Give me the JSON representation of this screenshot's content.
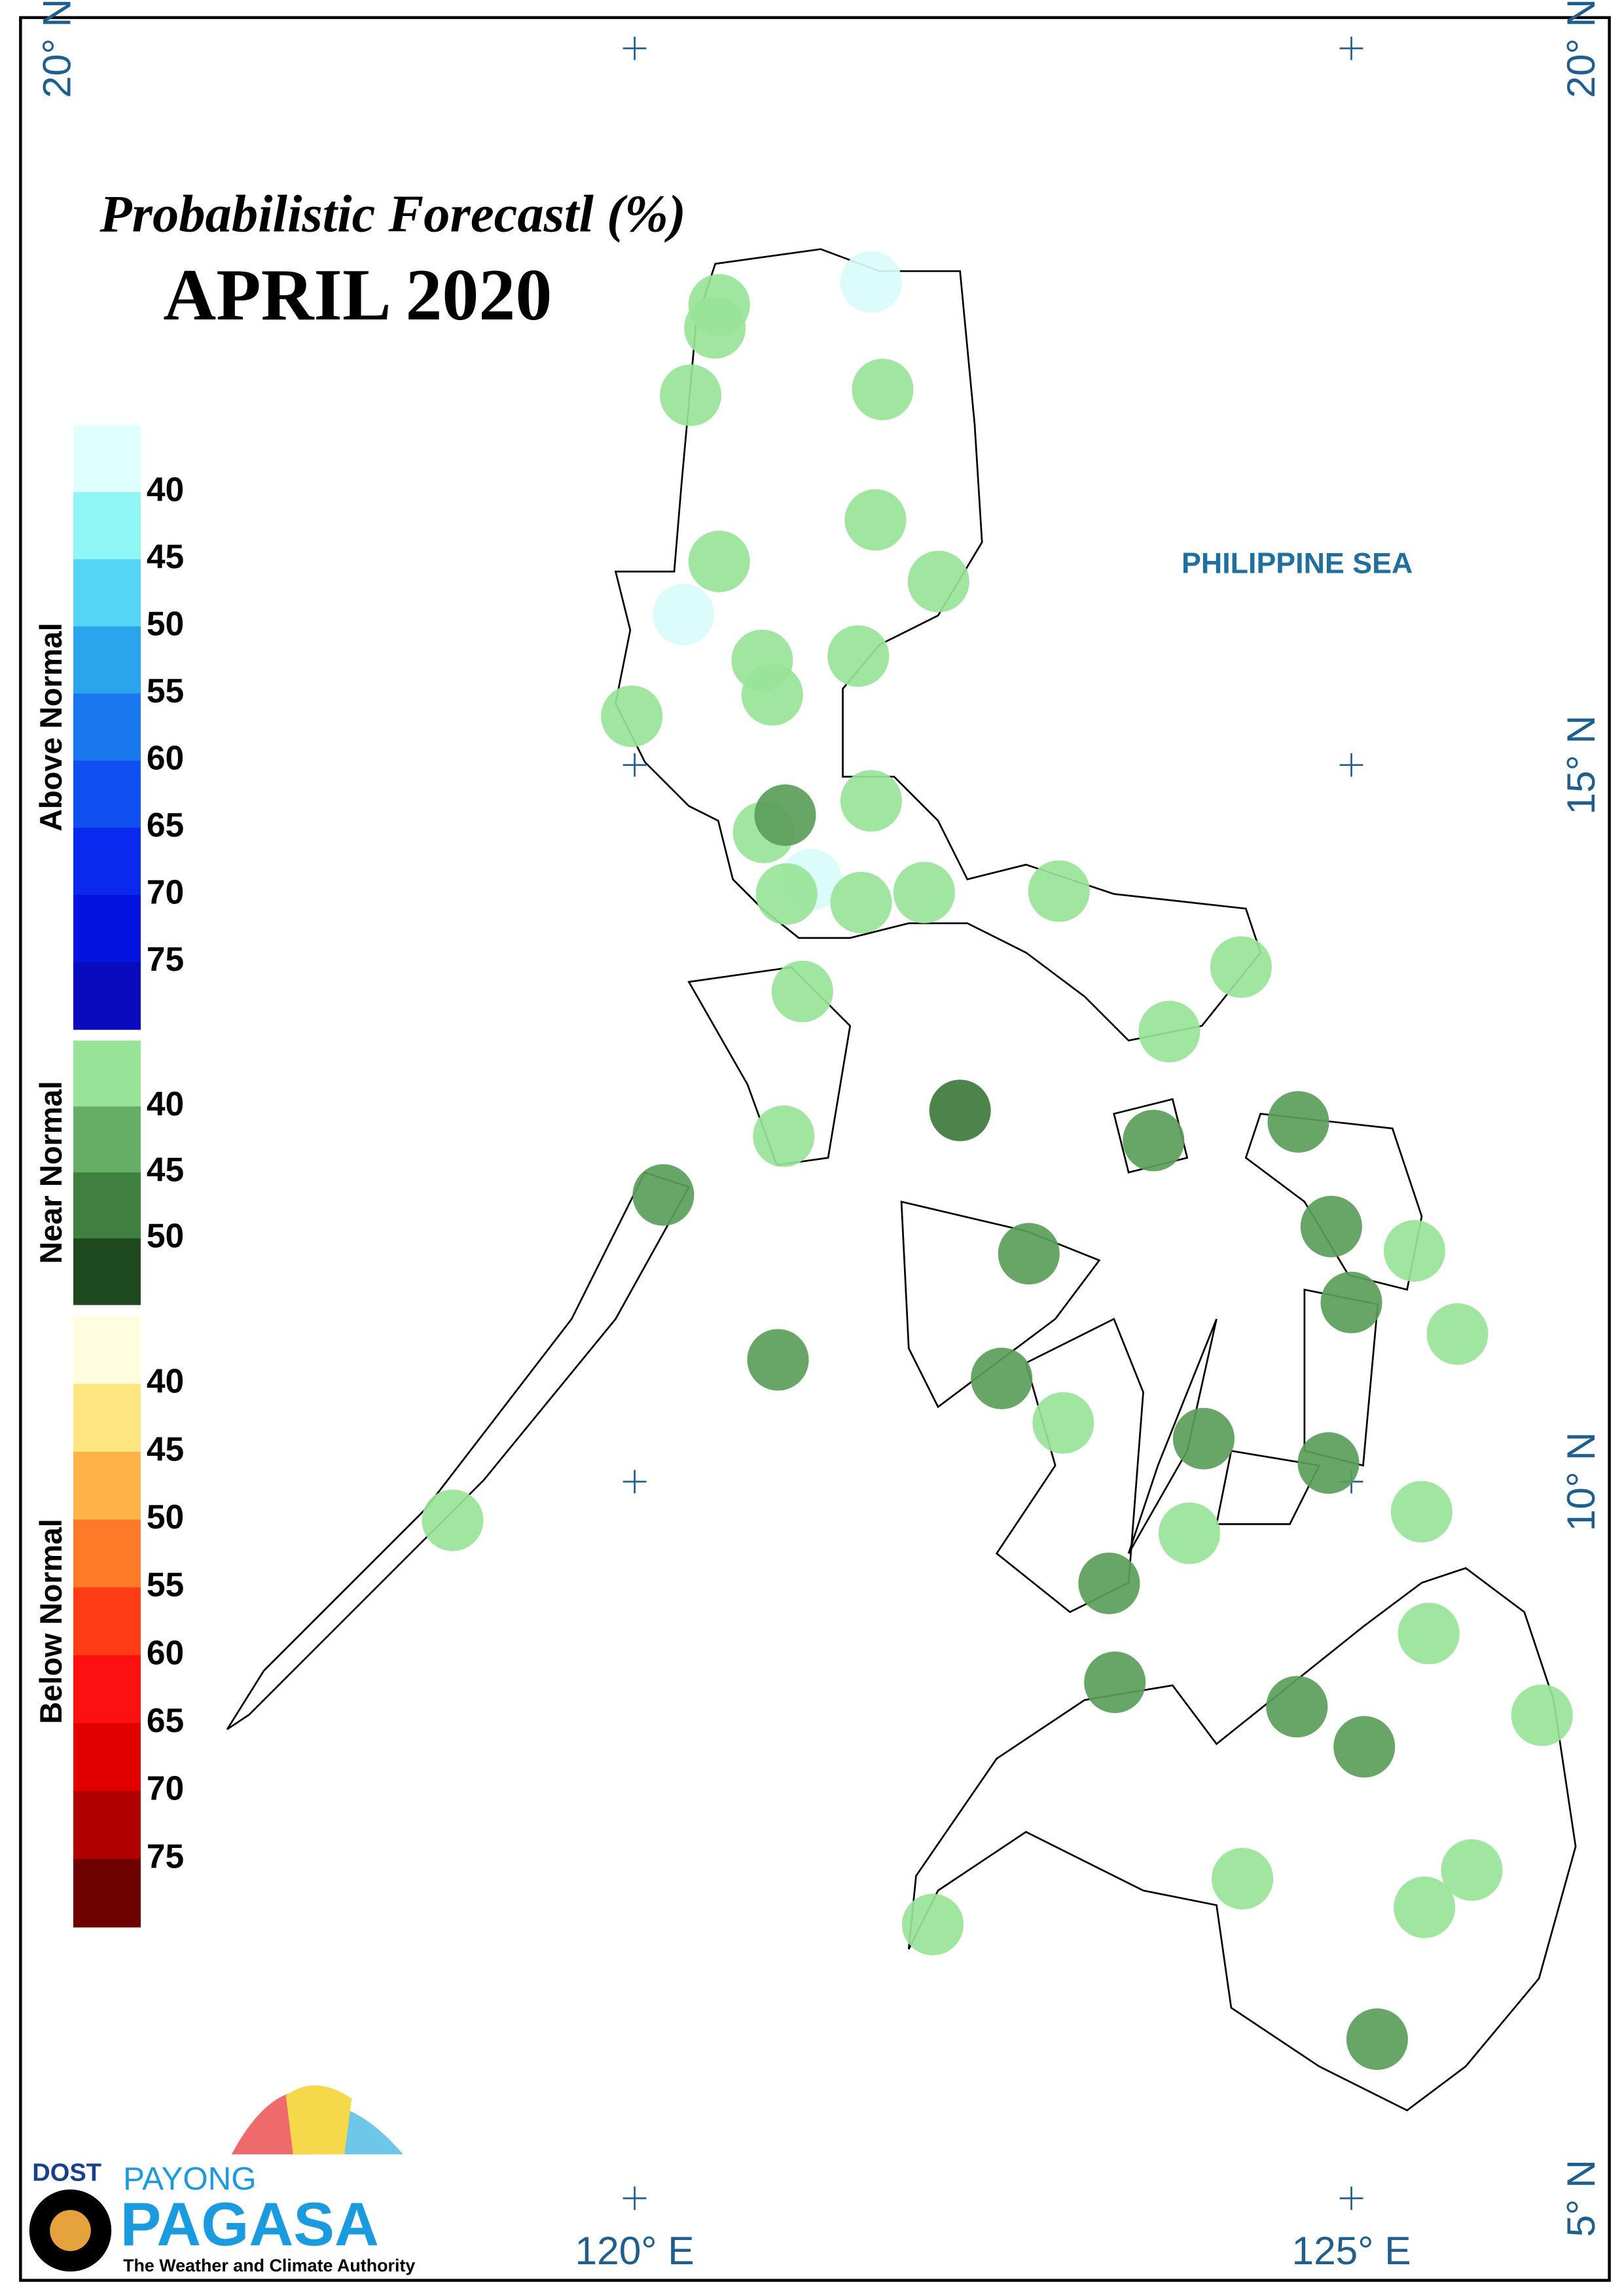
{
  "title": "Probabilistic Forecastl (%)",
  "subtitle": "APRIL 2020",
  "sea_label": "PHILIPPINE SEA",
  "legend": [
    {
      "name": "Above Normal",
      "colors": [
        "#e0ffff",
        "#8ff5f5",
        "#55d5f5",
        "#2ba4ee",
        "#1a78ee",
        "#1050f0",
        "#0a28ee",
        "#0414e0",
        "#0a0abf"
      ],
      "labels": [
        40,
        45,
        50,
        55,
        60,
        65,
        70,
        75
      ]
    },
    {
      "name": "Near Normal",
      "colors": [
        "#98e498",
        "#66ae66",
        "#3f7f3f",
        "#1f4a1f"
      ],
      "labels": [
        40,
        45,
        50
      ]
    },
    {
      "name": "Below Normal",
      "colors": [
        "#fffde0",
        "#ffe680",
        "#ffb44a",
        "#ff7a28",
        "#ff3c14",
        "#ff1010",
        "#e00000",
        "#b00000",
        "#6e0000"
      ],
      "labels": [
        40,
        45,
        50,
        55,
        60,
        65,
        70,
        75
      ]
    }
  ],
  "grid": {
    "lon": [
      {
        "value": 120,
        "label": "120° E"
      },
      {
        "value": 125,
        "label": "125° E"
      }
    ],
    "lat": [
      {
        "value": 20,
        "label": "20° N"
      },
      {
        "value": 15,
        "label": "15° N"
      },
      {
        "value": 10,
        "label": "10° N"
      },
      {
        "value": 5,
        "label": "5° N"
      }
    ]
  },
  "stations": [
    {
      "lon": 120.59,
      "lat": 18.21,
      "color": "#98e498"
    },
    {
      "lon": 120.56,
      "lat": 18.05,
      "color": "#98e498"
    },
    {
      "lon": 121.65,
      "lat": 18.37,
      "color": "#d9fbfb"
    },
    {
      "lon": 120.39,
      "lat": 17.58,
      "color": "#98e498"
    },
    {
      "lon": 121.73,
      "lat": 17.62,
      "color": "#98e498"
    },
    {
      "lon": 121.68,
      "lat": 16.71,
      "color": "#98e498"
    },
    {
      "lon": 120.59,
      "lat": 16.42,
      "color": "#98e498"
    },
    {
      "lon": 122.12,
      "lat": 16.28,
      "color": "#98e498"
    },
    {
      "lon": 120.34,
      "lat": 16.05,
      "color": "#d9fbfb"
    },
    {
      "lon": 120.89,
      "lat": 15.73,
      "color": "#98e498"
    },
    {
      "lon": 121.56,
      "lat": 15.76,
      "color": "#98e498"
    },
    {
      "lon": 120.96,
      "lat": 15.49,
      "color": "#98e498"
    },
    {
      "lon": 119.98,
      "lat": 15.34,
      "color": "#98e498"
    },
    {
      "lon": 120.9,
      "lat": 14.53,
      "color": "#98e498"
    },
    {
      "lon": 121.05,
      "lat": 14.65,
      "color": "#5a9e5a"
    },
    {
      "lon": 121.65,
      "lat": 14.75,
      "color": "#98e498"
    },
    {
      "lon": 121.23,
      "lat": 14.2,
      "color": "#d9fbfb"
    },
    {
      "lon": 121.06,
      "lat": 14.1,
      "color": "#98e498"
    },
    {
      "lon": 121.58,
      "lat": 14.04,
      "color": "#98e498"
    },
    {
      "lon": 122.02,
      "lat": 14.11,
      "color": "#98e498"
    },
    {
      "lon": 122.96,
      "lat": 14.12,
      "color": "#98e498"
    },
    {
      "lon": 124.23,
      "lat": 13.59,
      "color": "#98e498"
    },
    {
      "lon": 121.17,
      "lat": 13.42,
      "color": "#98e498"
    },
    {
      "lon": 123.73,
      "lat": 13.14,
      "color": "#98e498"
    },
    {
      "lon": 122.27,
      "lat": 12.59,
      "color": "#3d7a3d"
    },
    {
      "lon": 121.04,
      "lat": 12.41,
      "color": "#98e498"
    },
    {
      "lon": 123.62,
      "lat": 12.38,
      "color": "#5a9e5a"
    },
    {
      "lon": 124.63,
      "lat": 12.51,
      "color": "#5a9e5a"
    },
    {
      "lon": 120.2,
      "lat": 12.0,
      "color": "#5a9e5a"
    },
    {
      "lon": 124.86,
      "lat": 11.78,
      "color": "#5a9e5a"
    },
    {
      "lon": 125.44,
      "lat": 11.61,
      "color": "#98e498"
    },
    {
      "lon": 122.75,
      "lat": 11.59,
      "color": "#5a9e5a"
    },
    {
      "lon": 125.0,
      "lat": 11.25,
      "color": "#5a9e5a"
    },
    {
      "lon": 125.74,
      "lat": 11.03,
      "color": "#98e498"
    },
    {
      "lon": 121.0,
      "lat": 10.85,
      "color": "#5a9e5a"
    },
    {
      "lon": 122.56,
      "lat": 10.72,
      "color": "#5a9e5a"
    },
    {
      "lon": 122.99,
      "lat": 10.41,
      "color": "#98e498"
    },
    {
      "lon": 123.97,
      "lat": 10.3,
      "color": "#5a9e5a"
    },
    {
      "lon": 124.84,
      "lat": 10.13,
      "color": "#5a9e5a"
    },
    {
      "lon": 125.49,
      "lat": 9.79,
      "color": "#98e498"
    },
    {
      "lon": 118.73,
      "lat": 9.73,
      "color": "#98e498"
    },
    {
      "lon": 123.87,
      "lat": 9.64,
      "color": "#98e498"
    },
    {
      "lon": 123.31,
      "lat": 9.29,
      "color": "#5a9e5a"
    },
    {
      "lon": 125.54,
      "lat": 8.94,
      "color": "#98e498"
    },
    {
      "lon": 123.35,
      "lat": 8.6,
      "color": "#5a9e5a"
    },
    {
      "lon": 124.62,
      "lat": 8.43,
      "color": "#5a9e5a"
    },
    {
      "lon": 125.09,
      "lat": 8.15,
      "color": "#5a9e5a"
    },
    {
      "lon": 126.33,
      "lat": 8.37,
      "color": "#98e498"
    },
    {
      "lon": 124.24,
      "lat": 7.23,
      "color": "#98e498"
    },
    {
      "lon": 125.84,
      "lat": 7.29,
      "color": "#98e498"
    },
    {
      "lon": 125.51,
      "lat": 7.03,
      "color": "#98e498"
    },
    {
      "lon": 122.08,
      "lat": 6.91,
      "color": "#98e498"
    },
    {
      "lon": 125.18,
      "lat": 6.11,
      "color": "#5a9e5a"
    }
  ],
  "logo": {
    "agency": "DOST",
    "brand_top": "PAYONG",
    "brand": "PAGASA",
    "tagline": "The Weather and Climate Authority"
  }
}
